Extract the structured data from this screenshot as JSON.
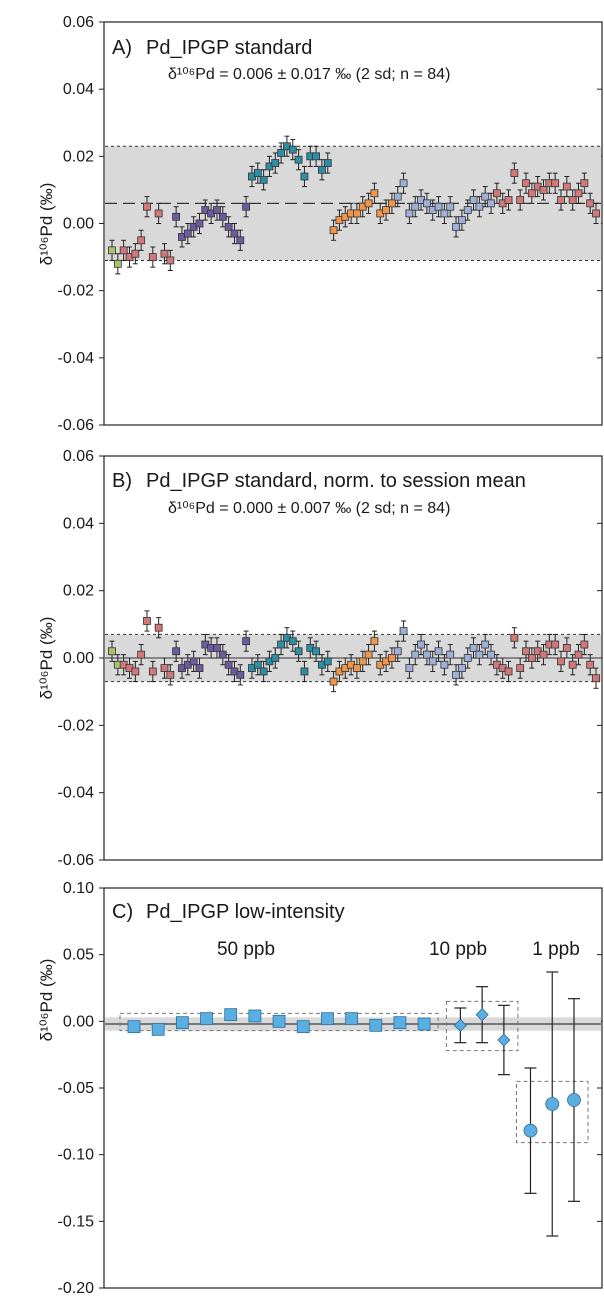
{
  "chart_data": [
    {
      "type": "scatter",
      "panel_label": "A)",
      "title": "Pd_IPGP standard",
      "subtitle": "δ¹⁰⁶Pd = 0.006 ± 0.017 ‰ (2 sd; n = 84)",
      "ylabel": "δ¹⁰⁶Pd (‰)",
      "ylim": [
        -0.06,
        0.06
      ],
      "ticks": [
        "0.06",
        "0.04",
        "0.02",
        "0.00",
        "-0.02",
        "-0.04",
        "-0.06"
      ],
      "band": [
        -0.011,
        0.023
      ],
      "mean": 0.006,
      "error": 0.003,
      "series": [
        {
          "color": "#a7c46a",
          "x": [
            1,
            2
          ],
          "y": [
            -0.008,
            -0.012
          ]
        },
        {
          "color": "#d0787a",
          "x": [
            3,
            4,
            5,
            6,
            7,
            8,
            9,
            10,
            11
          ],
          "y": [
            -0.008,
            -0.01,
            -0.009,
            -0.005,
            0.005,
            -0.01,
            0.003,
            -0.009,
            -0.011
          ]
        },
        {
          "color": "#6d5ba0",
          "x": [
            12,
            13,
            14,
            15,
            16,
            17,
            18,
            19,
            20,
            21,
            22,
            23,
            24
          ],
          "y": [
            0.002,
            -0.004,
            -0.003,
            -0.001,
            0.0,
            0.004,
            0.003,
            0.004,
            0.002,
            -0.001,
            -0.003,
            -0.005,
            0.005
          ]
        },
        {
          "color": "#2d8ea6",
          "x": [
            25,
            26,
            27,
            28,
            29,
            30,
            31,
            32,
            33,
            34,
            35,
            36,
            37,
            38
          ],
          "y": [
            0.014,
            0.015,
            0.013,
            0.017,
            0.018,
            0.021,
            0.023,
            0.022,
            0.019,
            0.014,
            0.02,
            0.02,
            0.016,
            0.018
          ]
        },
        {
          "color": "#f0964a",
          "x": [
            39,
            40,
            41,
            42,
            43,
            44,
            45,
            46,
            47,
            48,
            49
          ],
          "y": [
            -0.002,
            0.001,
            0.002,
            0.003,
            0.003,
            0.005,
            0.006,
            0.009,
            0.003,
            0.004,
            0.006
          ]
        },
        {
          "color": "#9fb0d8",
          "x": [
            50,
            51,
            52,
            53,
            54,
            55,
            56,
            57,
            58,
            59,
            60,
            61,
            62,
            63,
            64,
            65,
            66
          ],
          "y": [
            0.008,
            0.012,
            0.003,
            0.005,
            0.007,
            0.006,
            0.004,
            0.005,
            0.003,
            0.005,
            -0.001,
            0.001,
            0.004,
            0.007,
            0.005,
            0.008,
            0.006
          ]
        },
        {
          "color": "#d0787a",
          "x": [
            67,
            68,
            69,
            70,
            71,
            72,
            73,
            74,
            75,
            76,
            77,
            78,
            79,
            80,
            81,
            82,
            83,
            84
          ],
          "y": [
            0.009,
            0.006,
            0.007,
            0.015,
            0.007,
            0.012,
            0.009,
            0.011,
            0.01,
            0.012,
            0.012,
            0.007,
            0.011,
            0.007,
            0.009,
            0.012,
            0.006,
            0.003
          ]
        }
      ]
    },
    {
      "type": "scatter",
      "panel_label": "B)",
      "title": "Pd_IPGP standard, norm. to session mean",
      "subtitle": "δ¹⁰⁶Pd = 0.000 ± 0.007 ‰ (2 sd; n = 84)",
      "ylabel": "δ¹⁰⁶Pd (‰)",
      "ylim": [
        -0.06,
        0.06
      ],
      "ticks": [
        "0.06",
        "0.04",
        "0.02",
        "0.00",
        "-0.02",
        "-0.04",
        "-0.06"
      ],
      "band": [
        -0.007,
        0.007
      ],
      "mean": 0.0,
      "error": 0.003,
      "series": [
        {
          "color": "#a7c46a",
          "x": [
            1,
            2
          ],
          "y": [
            0.002,
            -0.002
          ]
        },
        {
          "color": "#d0787a",
          "x": [
            3,
            4,
            5,
            6,
            7,
            8,
            9,
            10,
            11
          ],
          "y": [
            -0.002,
            -0.003,
            -0.004,
            0.001,
            0.011,
            -0.004,
            0.009,
            -0.003,
            -0.005
          ]
        },
        {
          "color": "#6d5ba0",
          "x": [
            12,
            13,
            14,
            15,
            16,
            17,
            18,
            19,
            20,
            21,
            22,
            23,
            24
          ],
          "y": [
            0.002,
            -0.003,
            -0.002,
            -0.001,
            -0.003,
            0.004,
            0.003,
            0.003,
            0.001,
            -0.002,
            -0.004,
            -0.005,
            0.005
          ]
        },
        {
          "color": "#2d8ea6",
          "x": [
            25,
            26,
            27,
            28,
            29,
            30,
            31,
            32,
            33,
            34,
            35,
            36,
            37,
            38
          ],
          "y": [
            -0.003,
            -0.002,
            -0.004,
            -0.001,
            0.0,
            0.004,
            0.006,
            0.005,
            0.002,
            -0.004,
            0.003,
            0.002,
            -0.002,
            -0.001
          ]
        },
        {
          "color": "#f0964a",
          "x": [
            39,
            40,
            41,
            42,
            43,
            44,
            45,
            46,
            47,
            48,
            49
          ],
          "y": [
            -0.007,
            -0.004,
            -0.003,
            -0.002,
            -0.003,
            -0.001,
            0.001,
            0.005,
            -0.002,
            -0.001,
            0.0
          ]
        },
        {
          "color": "#9fb0d8",
          "x": [
            50,
            51,
            52,
            53,
            54,
            55,
            56,
            57,
            58,
            59,
            60,
            61,
            62,
            63,
            64,
            65,
            66
          ],
          "y": [
            0.002,
            0.008,
            -0.003,
            0.001,
            0.004,
            0.001,
            -0.001,
            0.002,
            -0.002,
            0.001,
            -0.005,
            -0.003,
            0.0,
            0.003,
            0.001,
            0.004,
            0.001
          ]
        },
        {
          "color": "#d0787a",
          "x": [
            67,
            68,
            69,
            70,
            71,
            72,
            73,
            74,
            75,
            76,
            77,
            78,
            79,
            80,
            81,
            82,
            83,
            84
          ],
          "y": [
            -0.002,
            -0.003,
            -0.004,
            0.006,
            -0.003,
            0.002,
            0.0,
            0.002,
            0.001,
            0.004,
            0.004,
            -0.001,
            0.003,
            -0.002,
            0.001,
            0.004,
            -0.002,
            -0.006
          ]
        }
      ]
    },
    {
      "type": "scatter",
      "panel_label": "C)",
      "title": "Pd_IPGP low-intensity",
      "ylabel": "δ¹⁰⁶Pd (‰)",
      "ylim": [
        -0.2,
        0.1
      ],
      "ticks": [
        "0.10",
        "0.05",
        "0.00",
        "-0.05",
        "-0.10",
        "-0.15",
        "-0.20"
      ],
      "band": [
        -0.007,
        0.003
      ],
      "mean": -0.002,
      "groups": [
        {
          "label": "50 ppb",
          "marker": "square",
          "x": [
            1,
            2,
            3,
            4,
            5,
            6,
            7,
            8,
            9,
            10,
            11,
            12,
            13
          ],
          "y": [
            -0.004,
            -0.006,
            -0.001,
            0.002,
            0.005,
            0.004,
            0.0,
            -0.004,
            0.002,
            0.002,
            -0.003,
            -0.001,
            -0.002
          ],
          "err": [
            0,
            0,
            0,
            0,
            0,
            0,
            0,
            0,
            0,
            0,
            0,
            0,
            0
          ],
          "box": [
            -0.007,
            0.006
          ]
        },
        {
          "label": "10 ppb",
          "marker": "diamond",
          "x": [
            14.5,
            15.4,
            16.3
          ],
          "y": [
            -0.003,
            0.005,
            -0.014
          ],
          "err": [
            0.013,
            0.021,
            0.026
          ],
          "box": [
            -0.022,
            0.015
          ]
        },
        {
          "label": "1 ppb",
          "marker": "circle",
          "x": [
            17.4,
            18.3,
            19.2
          ],
          "y": [
            -0.082,
            -0.062,
            -0.059
          ],
          "err": [
            0.047,
            0.099,
            0.076
          ],
          "box": [
            -0.091,
            -0.045
          ]
        }
      ]
    }
  ],
  "colors": {
    "band": "#d9d9d9",
    "error_bar": "#222222",
    "marker_c": "#5aaee0"
  }
}
